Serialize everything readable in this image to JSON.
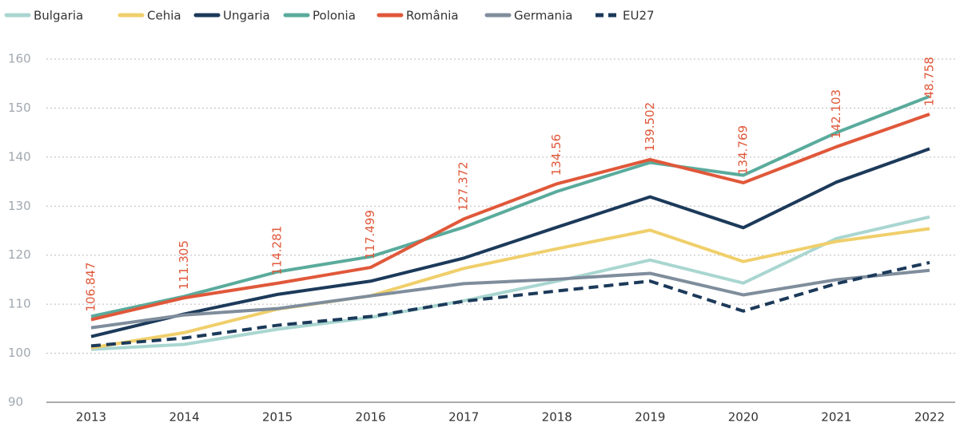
{
  "chart_data": {
    "type": "line",
    "categories": [
      "2013",
      "2014",
      "2015",
      "2016",
      "2017",
      "2018",
      "2019",
      "2020",
      "2021",
      "2022"
    ],
    "series": [
      {
        "name": "Bulgaria",
        "color": "#a9d6d0",
        "dashed": false,
        "values": [
          100.8,
          101.8,
          104.9,
          107.3,
          110.7,
          114.7,
          119,
          114.3,
          123.4,
          127.8
        ]
      },
      {
        "name": "Cehia",
        "color": "#f0cf6b",
        "dashed": false,
        "values": [
          101.1,
          104.2,
          109,
          111.7,
          117.3,
          121.3,
          125.1,
          118.7,
          122.8,
          125.4
        ]
      },
      {
        "name": "Ungaria",
        "color": "#1c3a5a",
        "dashed": false,
        "values": [
          103.4,
          108,
          112,
          114.7,
          119.4,
          125.7,
          131.9,
          125.6,
          134.9,
          141.7
        ]
      },
      {
        "name": "Polonia",
        "color": "#5aab9c",
        "dashed": false,
        "values": [
          107.5,
          111.6,
          116.6,
          119.7,
          125.7,
          133,
          138.9,
          136.3,
          145,
          152.4
        ]
      },
      {
        "name": "România",
        "color": "#e0583a",
        "dashed": false,
        "data_labels": true,
        "values": [
          106.847,
          111.305,
          114.281,
          117.499,
          127.372,
          134.56,
          139.502,
          134.769,
          142.103,
          148.758
        ]
      },
      {
        "name": "Germania",
        "color": "#7f8d9c",
        "dashed": false,
        "values": [
          105.2,
          107.8,
          109.1,
          111.7,
          114.2,
          115.1,
          116.3,
          111.9,
          115,
          116.9
        ]
      },
      {
        "name": "EU27",
        "color": "#1c3a5a",
        "dashed": true,
        "values": [
          101.5,
          103.1,
          105.7,
          107.5,
          110.6,
          112.7,
          114.7,
          108.6,
          114.2,
          118.5
        ]
      }
    ],
    "ylim": [
      90,
      160
    ],
    "yticks": [
      90,
      100,
      110,
      120,
      130,
      140,
      150,
      160
    ],
    "grid": true,
    "legend": "top"
  }
}
